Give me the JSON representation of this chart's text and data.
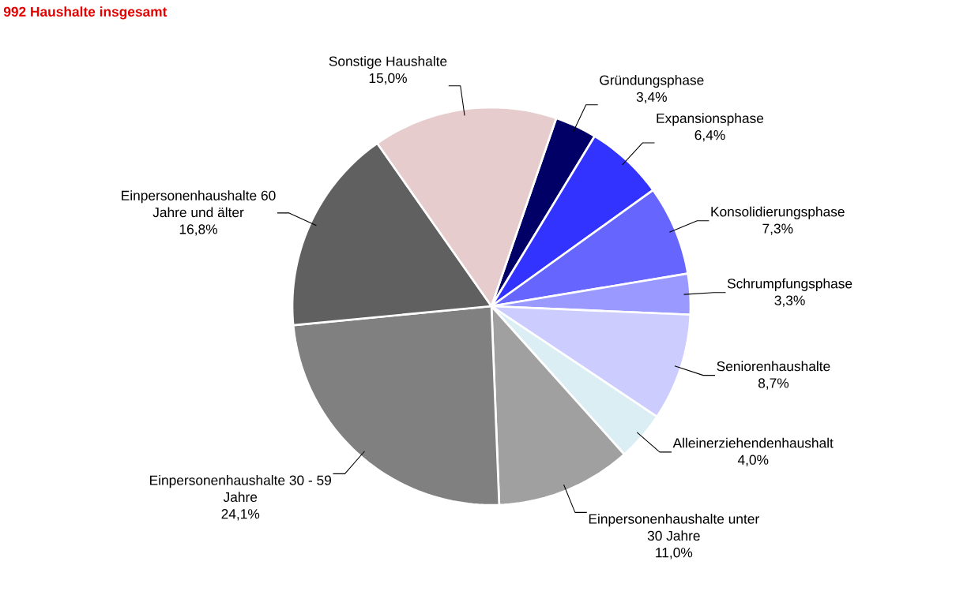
{
  "chart_data": {
    "type": "pie",
    "title": "992 Haushalte insgesamt",
    "categories": [
      "Gründungsphase",
      "Expansionsphase",
      "Konsolidierungsphase",
      "Schrumpfungsphase",
      "Seniorenhaushalte",
      "Alleinerziehendenhaushalt",
      "Einpersonenhaushalte unter 30 Jahre",
      "Einpersonenhaushalte 30 - 59 Jahre",
      "Einpersonenhaushalte 60 Jahre und älter",
      "Sonstige Haushalte"
    ],
    "values": [
      3.4,
      6.4,
      7.3,
      3.3,
      8.7,
      4.0,
      11.0,
      24.1,
      16.8,
      15.0
    ],
    "value_labels": [
      "3,4%",
      "6,4%",
      "7,3%",
      "3,3%",
      "8,7%",
      "4,0%",
      "11,0%",
      "24,1%",
      "16,8%",
      "15,0%"
    ],
    "colors": [
      "#000066",
      "#3333ff",
      "#6666ff",
      "#9999ff",
      "#ccccff",
      "#daeef3",
      "#a0a0a0",
      "#808080",
      "#606060",
      "#e6cccc"
    ]
  }
}
